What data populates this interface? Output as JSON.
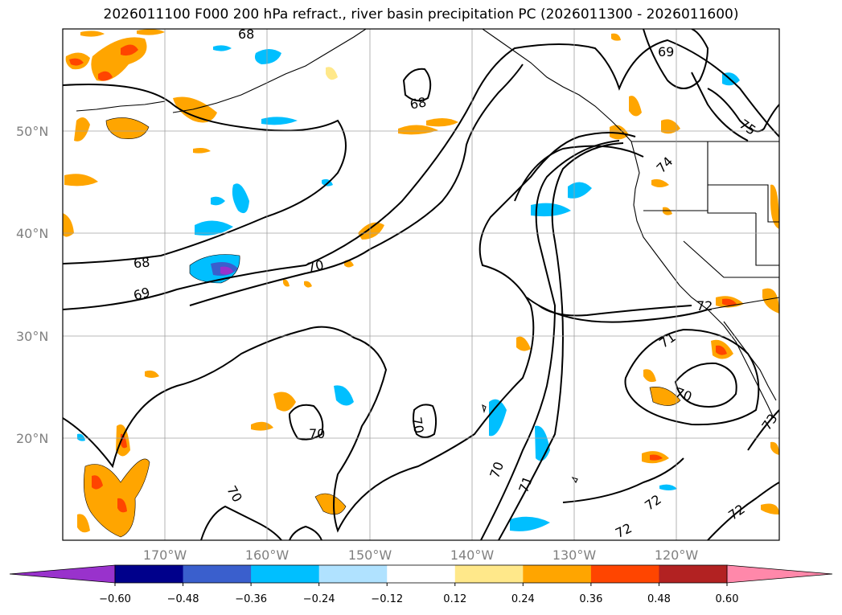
{
  "title": "2026011100 F000 200 hPa refract., river basin precipitation PC (2026011300 - 2026011600)",
  "lat_labels": [
    "50°N",
    "40°N",
    "30°N",
    "20°N"
  ],
  "lon_labels": [
    "170°W",
    "160°W",
    "150°W",
    "140°W",
    "130°W",
    "120°W"
  ],
  "contour_labels": [
    "68",
    "68",
    "68",
    "69",
    "69",
    "70",
    "70",
    "70",
    "70",
    "70",
    "70",
    "71",
    "71",
    "72",
    "72",
    "72",
    "72",
    "73",
    "74",
    "75"
  ],
  "colorbar": {
    "ticks": [
      "−0.60",
      "−0.48",
      "−0.36",
      "−0.24",
      "−0.12",
      "0.12",
      "0.24",
      "0.36",
      "0.48",
      "0.60"
    ],
    "colors": [
      "#9932cc",
      "#00008b",
      "#3a5fcd",
      "#00bfff",
      "#b0e2ff",
      "#ffffff",
      "#ffe88a",
      "#ffa500",
      "#ff4500",
      "#b22222",
      "#ff88aa"
    ]
  }
}
